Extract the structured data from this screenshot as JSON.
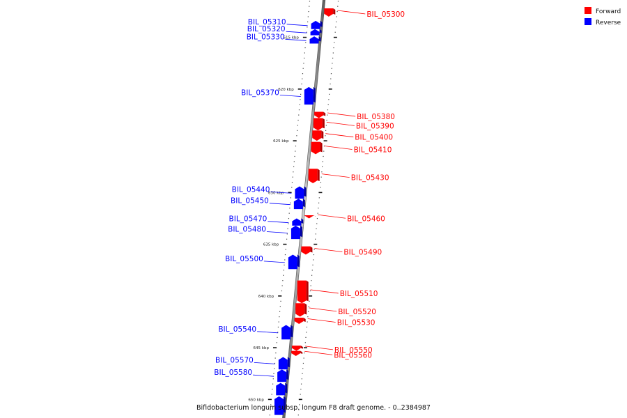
{
  "legend": {
    "items": [
      {
        "label": "Forward",
        "color": "#ff0000"
      },
      {
        "label": "Reverse",
        "color": "#0000ff"
      }
    ]
  },
  "caption": "Bifidobacterium longum subsp. longum F8 draft genome. - 0..2384987",
  "scale_unit": "kbp",
  "colors": {
    "forward": "#ff0000",
    "forward_dark": "#b30000",
    "reverse": "#0000ff",
    "reverse_dark": "#0000a0",
    "backbone": "#9a9a9a",
    "backbone_edge": "#555555"
  },
  "ticks": [
    {
      "kbp": 615,
      "label": "615 kbp"
    },
    {
      "kbp": 620,
      "label": "620 kbp"
    },
    {
      "kbp": 625,
      "label": "625 kbp"
    },
    {
      "kbp": 630,
      "label": "630 kbp"
    },
    {
      "kbp": 635,
      "label": "635 kbp"
    },
    {
      "kbp": 640,
      "label": "640 kbp"
    },
    {
      "kbp": 645,
      "label": "645 kbp"
    },
    {
      "kbp": 650,
      "label": "650 kbp"
    }
  ],
  "genes": [
    {
      "id": "BIL_05300",
      "strand": "forward",
      "start_kbp": 612.2,
      "end_kbp": 613.0
    },
    {
      "id": "BIL_05310",
      "strand": "reverse",
      "start_kbp": 613.4,
      "end_kbp": 614.2
    },
    {
      "id": "BIL_05320",
      "strand": "reverse",
      "start_kbp": 614.2,
      "end_kbp": 614.8
    },
    {
      "id": "BIL_05330",
      "strand": "reverse",
      "start_kbp": 614.9,
      "end_kbp": 615.6
    },
    {
      "id": "BIL_05370",
      "strand": "reverse",
      "start_kbp": 619.8,
      "end_kbp": 621.5
    },
    {
      "id": "BIL_05380",
      "strand": "forward",
      "start_kbp": 622.2,
      "end_kbp": 622.8
    },
    {
      "id": "BIL_05390",
      "strand": "forward",
      "start_kbp": 622.8,
      "end_kbp": 624.0
    },
    {
      "id": "BIL_05400",
      "strand": "forward",
      "start_kbp": 624.0,
      "end_kbp": 625.0
    },
    {
      "id": "BIL_05410",
      "strand": "forward",
      "start_kbp": 625.1,
      "end_kbp": 626.3
    },
    {
      "id": "BIL_05430",
      "strand": "forward",
      "start_kbp": 627.7,
      "end_kbp": 629.1
    },
    {
      "id": "BIL_05440",
      "strand": "reverse",
      "start_kbp": 629.4,
      "end_kbp": 630.6
    },
    {
      "id": "BIL_05450",
      "strand": "reverse",
      "start_kbp": 630.6,
      "end_kbp": 631.6
    },
    {
      "id": "BIL_05460",
      "strand": "forward",
      "start_kbp": 632.2,
      "end_kbp": 632.5
    },
    {
      "id": "BIL_05470",
      "strand": "reverse",
      "start_kbp": 632.5,
      "end_kbp": 633.2
    },
    {
      "id": "BIL_05480",
      "strand": "reverse",
      "start_kbp": 633.2,
      "end_kbp": 634.5
    },
    {
      "id": "BIL_05490",
      "strand": "forward",
      "start_kbp": 635.2,
      "end_kbp": 636.0
    },
    {
      "id": "BIL_05500",
      "strand": "reverse",
      "start_kbp": 636.0,
      "end_kbp": 637.4
    },
    {
      "id": "BIL_05510",
      "strand": "forward",
      "start_kbp": 638.5,
      "end_kbp": 640.7
    },
    {
      "id": "BIL_05520",
      "strand": "forward",
      "start_kbp": 640.7,
      "end_kbp": 642.0
    },
    {
      "id": "BIL_05530",
      "strand": "forward",
      "start_kbp": 642.1,
      "end_kbp": 642.7
    },
    {
      "id": "BIL_05540",
      "strand": "reverse",
      "start_kbp": 642.8,
      "end_kbp": 644.2
    },
    {
      "id": "BIL_05550",
      "strand": "forward",
      "start_kbp": 644.8,
      "end_kbp": 645.3
    },
    {
      "id": "BIL_05560",
      "strand": "forward",
      "start_kbp": 645.3,
      "end_kbp": 645.8
    },
    {
      "id": "BIL_05570",
      "strand": "reverse",
      "start_kbp": 645.9,
      "end_kbp": 647.1
    },
    {
      "id": "BIL_05580",
      "strand": "reverse",
      "start_kbp": 647.1,
      "end_kbp": 648.3
    },
    {
      "id": "",
      "strand": "reverse",
      "start_kbp": 648.4,
      "end_kbp": 649.6
    },
    {
      "id": "",
      "strand": "reverse",
      "start_kbp": 649.7,
      "end_kbp": 651.5
    }
  ]
}
